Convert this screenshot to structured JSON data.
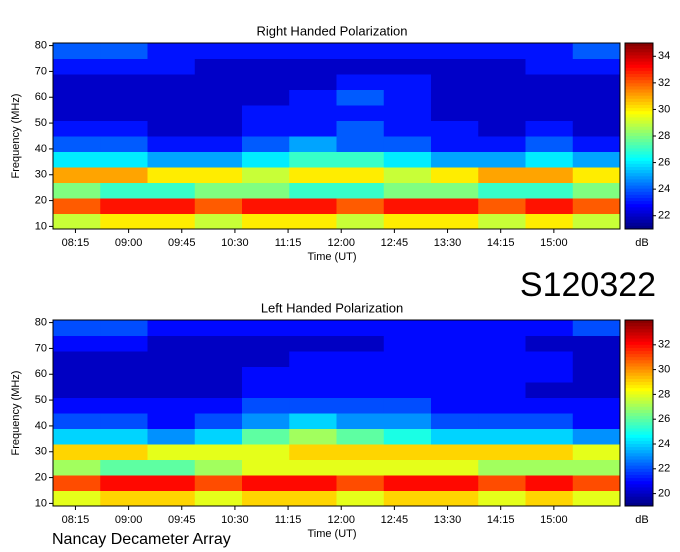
{
  "page": {
    "label": "S120322",
    "footer": "Nancay Decameter Array"
  },
  "chart_data": [
    {
      "type": "heatmap",
      "title": "Right Handed Polarization",
      "xlabel": "Time (UT)",
      "ylabel": "Frequency (MHz)",
      "xlim": [
        476,
        956
      ],
      "ylim": [
        9,
        81
      ],
      "xbins": [
        476,
        516,
        556,
        596,
        636,
        676,
        716,
        756,
        796,
        836,
        876,
        916,
        956
      ],
      "ybins": [
        9,
        15,
        21,
        27,
        33,
        39,
        45,
        51,
        57,
        63,
        69,
        75,
        81
      ],
      "xticks": [
        {
          "value": 495,
          "label": "08:15"
        },
        {
          "value": 540,
          "label": "09:00"
        },
        {
          "value": 585,
          "label": "09:45"
        },
        {
          "value": 630,
          "label": "10:30"
        },
        {
          "value": 675,
          "label": "11:15"
        },
        {
          "value": 720,
          "label": "12:00"
        },
        {
          "value": 765,
          "label": "12:45"
        },
        {
          "value": 810,
          "label": "13:30"
        },
        {
          "value": 855,
          "label": "14:15"
        },
        {
          "value": 900,
          "label": "15:00"
        }
      ],
      "yticks": [
        10,
        20,
        30,
        40,
        50,
        60,
        70,
        80
      ],
      "z": [
        [
          29,
          30,
          30,
          29,
          30,
          30,
          29,
          30,
          30,
          29,
          30,
          29
        ],
        [
          32,
          33,
          33,
          32,
          33,
          33,
          32,
          33,
          33,
          32,
          33,
          32
        ],
        [
          28,
          27,
          27,
          28,
          28,
          27,
          27,
          28,
          28,
          27,
          27,
          28
        ],
        [
          31,
          31,
          30,
          30,
          29,
          30,
          30,
          29,
          30,
          31,
          31,
          30
        ],
        [
          26,
          26,
          25,
          25,
          26,
          27,
          27,
          26,
          25,
          25,
          26,
          25
        ],
        [
          24,
          24,
          23,
          23,
          24,
          25,
          24,
          24,
          23,
          23,
          24,
          23
        ],
        [
          23,
          23,
          22,
          22,
          23,
          23,
          24,
          23,
          23,
          22,
          23,
          22
        ],
        [
          22,
          22,
          22,
          22,
          23,
          23,
          23,
          23,
          22,
          22,
          22,
          22
        ],
        [
          22,
          22,
          22,
          22,
          22,
          23,
          24,
          23,
          22,
          22,
          22,
          22
        ],
        [
          22,
          22,
          22,
          22,
          22,
          22,
          23,
          23,
          22,
          22,
          22,
          22
        ],
        [
          23,
          23,
          23,
          22,
          22,
          22,
          22,
          22,
          22,
          22,
          23,
          23
        ],
        [
          24,
          24,
          23,
          23,
          23,
          23,
          23,
          23,
          23,
          23,
          23,
          24
        ]
      ],
      "colorbar": {
        "label": "dB",
        "colormap": "jet",
        "zlim": [
          21,
          35
        ],
        "ticks": [
          22,
          24,
          26,
          28,
          30,
          32,
          34
        ]
      }
    },
    {
      "type": "heatmap",
      "title": "Left Handed Polarization",
      "xlabel": "Time (UT)",
      "ylabel": "Frequency (MHz)",
      "xlim": [
        476,
        956
      ],
      "ylim": [
        9,
        81
      ],
      "xbins": [
        476,
        516,
        556,
        596,
        636,
        676,
        716,
        756,
        796,
        836,
        876,
        916,
        956
      ],
      "ybins": [
        9,
        15,
        21,
        27,
        33,
        39,
        45,
        51,
        57,
        63,
        69,
        75,
        81
      ],
      "xticks": [
        {
          "value": 495,
          "label": "08:15"
        },
        {
          "value": 540,
          "label": "09:00"
        },
        {
          "value": 585,
          "label": "09:45"
        },
        {
          "value": 630,
          "label": "10:30"
        },
        {
          "value": 675,
          "label": "11:15"
        },
        {
          "value": 720,
          "label": "12:00"
        },
        {
          "value": 765,
          "label": "12:45"
        },
        {
          "value": 810,
          "label": "13:30"
        },
        {
          "value": 855,
          "label": "14:15"
        },
        {
          "value": 900,
          "label": "15:00"
        }
      ],
      "yticks": [
        10,
        20,
        30,
        40,
        50,
        60,
        70,
        80
      ],
      "z": [
        [
          28,
          29,
          29,
          28,
          29,
          29,
          28,
          29,
          29,
          28,
          29,
          28
        ],
        [
          31,
          32,
          32,
          31,
          32,
          32,
          31,
          32,
          32,
          31,
          32,
          31
        ],
        [
          27,
          26,
          26,
          27,
          28,
          28,
          28,
          28,
          28,
          27,
          27,
          27
        ],
        [
          29,
          29,
          28,
          28,
          28,
          29,
          29,
          29,
          29,
          29,
          29,
          28
        ],
        [
          24,
          24,
          23,
          24,
          26,
          27,
          26,
          25,
          24,
          24,
          24,
          23
        ],
        [
          22,
          22,
          21,
          22,
          23,
          24,
          23,
          23,
          22,
          22,
          22,
          21
        ],
        [
          21,
          21,
          21,
          21,
          22,
          22,
          22,
          22,
          21,
          21,
          21,
          21
        ],
        [
          20,
          20,
          20,
          20,
          21,
          21,
          21,
          21,
          21,
          21,
          20,
          20
        ],
        [
          20,
          20,
          20,
          20,
          21,
          21,
          21,
          21,
          21,
          21,
          21,
          20
        ],
        [
          20,
          20,
          20,
          20,
          20,
          21,
          21,
          21,
          21,
          21,
          21,
          20
        ],
        [
          21,
          21,
          20,
          20,
          20,
          20,
          20,
          21,
          21,
          21,
          20,
          20
        ],
        [
          22,
          22,
          21,
          21,
          21,
          21,
          21,
          21,
          21,
          21,
          21,
          22
        ]
      ],
      "colorbar": {
        "label": "dB",
        "colormap": "jet",
        "zlim": [
          19,
          34
        ],
        "ticks": [
          20,
          22,
          24,
          26,
          28,
          30,
          32
        ]
      }
    }
  ]
}
